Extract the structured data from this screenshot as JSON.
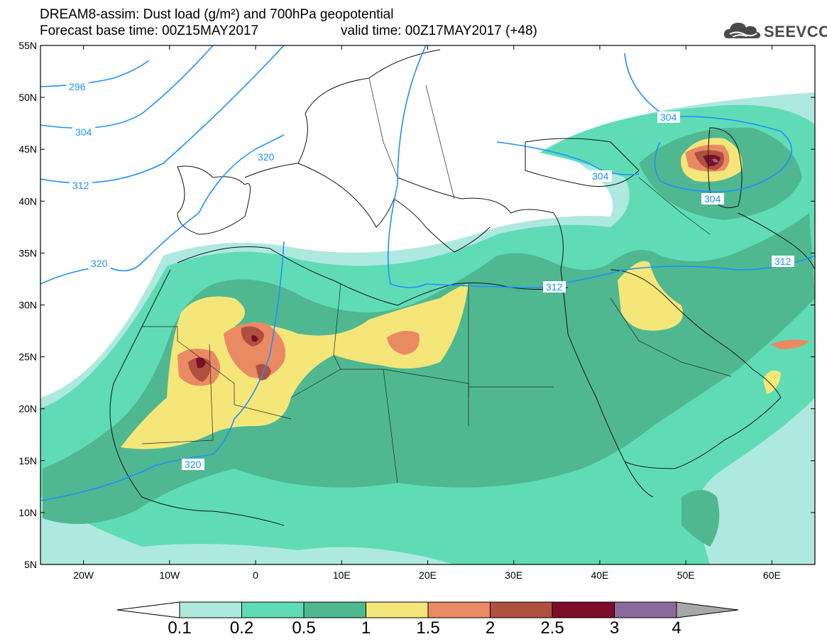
{
  "header": {
    "line1": "DREAM8-assim: Dust load (g/m²) and 700hPa geopotential",
    "line2_base": "Forecast base time: 00Z15MAY2017",
    "line2_valid": "valid time: 00Z17MAY2017 (+48)"
  },
  "logo": {
    "text": "SEEVCCC",
    "icon": "cloud-icon"
  },
  "map": {
    "lat_labels": [
      "55N",
      "50N",
      "45N",
      "40N",
      "35N",
      "30N",
      "25N",
      "20N",
      "15N",
      "10N",
      "5N"
    ],
    "lon_labels": [
      "20W",
      "10W",
      "0",
      "10E",
      "20E",
      "30E",
      "40E",
      "50E",
      "60E"
    ],
    "contour_labels": [
      "296",
      "304",
      "312",
      "320",
      "320",
      "320",
      "304",
      "304",
      "304",
      "312",
      "312"
    ],
    "contour_color": "#1e90ff",
    "extent": {
      "lon_min": -25,
      "lon_max": 65,
      "lat_min": 5,
      "lat_max": 55
    }
  },
  "colorbar": {
    "labels": [
      "0.1",
      "0.2",
      "0.5",
      "1",
      "1.5",
      "2",
      "2.5",
      "3",
      "4"
    ],
    "colors": [
      "#aee9df",
      "#5fdcb6",
      "#4fb890",
      "#f5e67a",
      "#ea8a63",
      "#b0503f",
      "#7e0d2a",
      "#8a6a9c",
      "#a8a8a8"
    ]
  }
}
